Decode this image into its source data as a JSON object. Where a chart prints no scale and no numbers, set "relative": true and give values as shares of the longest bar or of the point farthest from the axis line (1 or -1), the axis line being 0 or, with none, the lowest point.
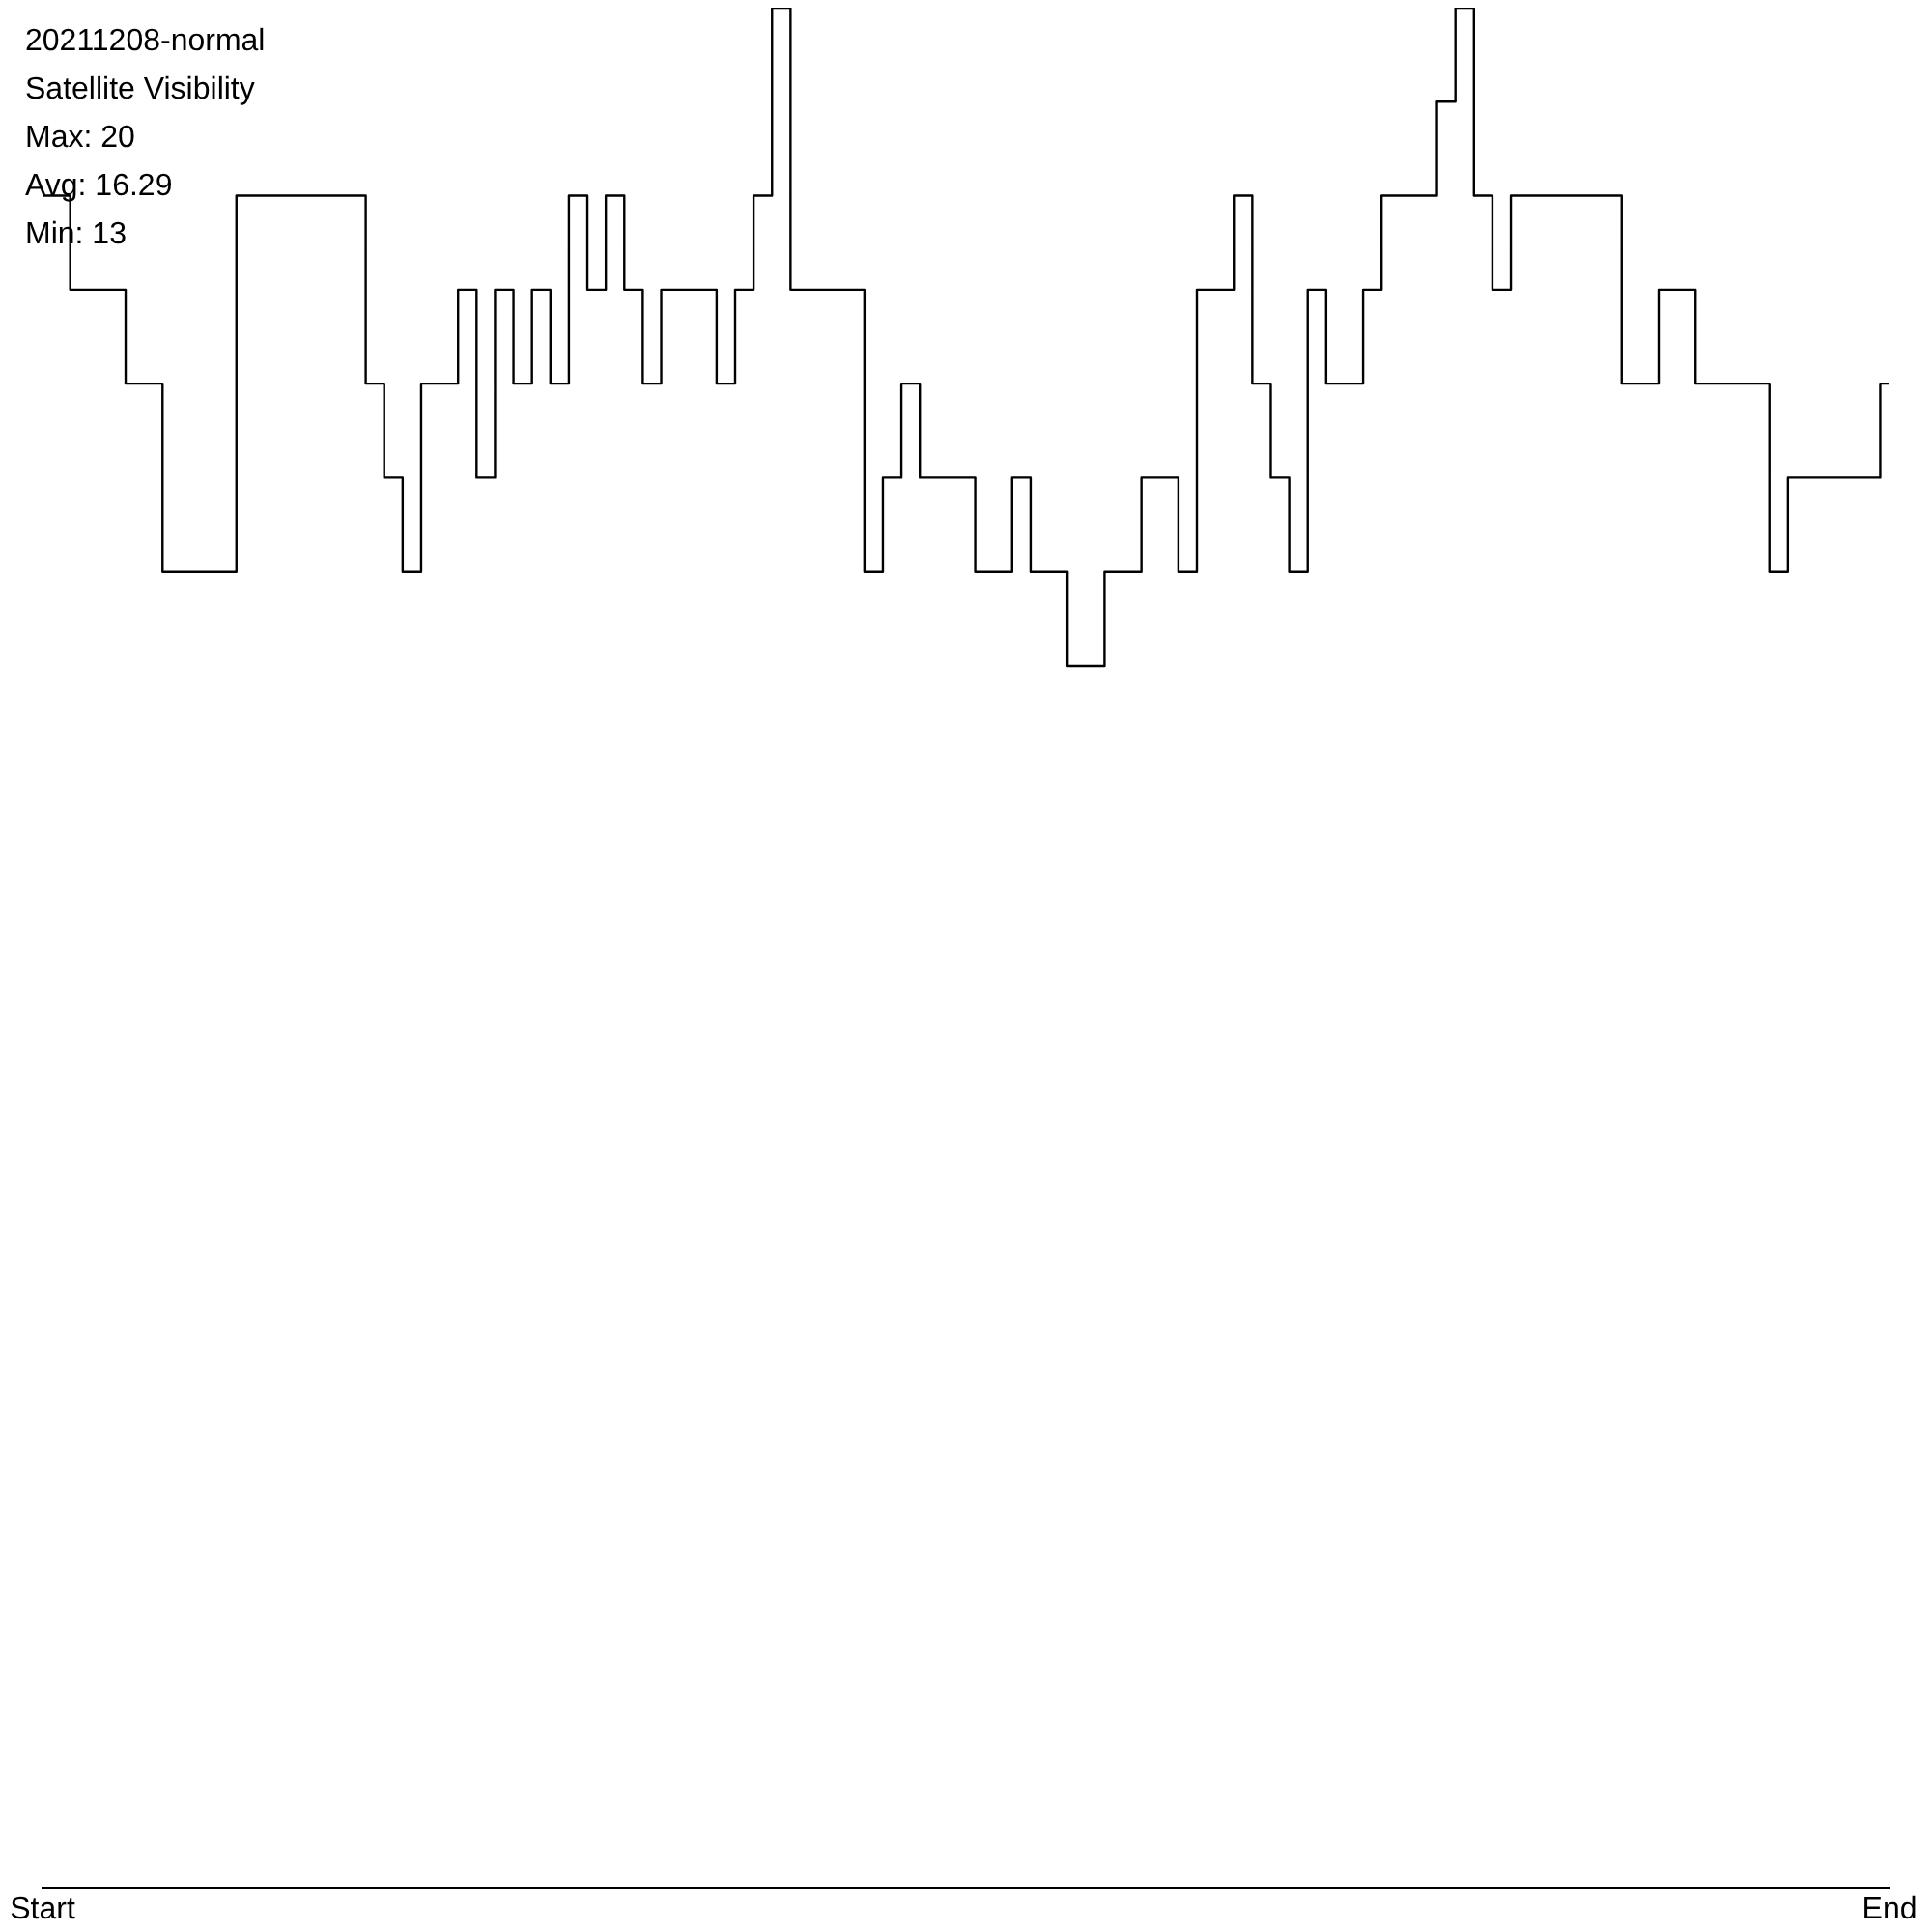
{
  "chart_data": {
    "type": "step",
    "title": "20211208-normal",
    "subtitle": "Satellite Visibility",
    "annotations": [
      "Max: 20",
      "Avg: 16.29",
      "Min: 13"
    ],
    "relative": true,
    "grid": false,
    "color": "#000000",
    "categories": [
      "Start",
      null,
      null,
      null,
      null,
      null,
      null,
      null,
      null,
      null,
      null,
      null,
      null,
      null,
      null,
      null,
      null,
      null,
      null,
      null,
      null,
      null,
      null,
      null,
      null,
      null,
      null,
      null,
      null,
      null,
      null,
      null,
      null,
      null,
      null,
      null,
      null,
      null,
      null,
      null,
      null,
      null,
      null,
      null,
      null,
      null,
      null,
      null,
      null,
      null,
      null,
      null,
      null,
      null,
      null,
      null,
      null,
      null,
      null,
      null,
      null,
      null,
      null,
      null,
      null,
      null,
      null,
      null,
      null,
      null,
      null,
      null,
      null,
      null,
      null,
      null,
      null,
      null,
      null,
      null,
      null,
      null,
      null,
      null,
      null,
      null,
      null,
      null,
      null,
      null,
      null,
      null,
      null,
      null,
      null,
      null,
      null,
      null,
      null,
      null,
      "End"
    ],
    "values": [
      0.9,
      0.9,
      0.85,
      0.85,
      0.85,
      0.8,
      0.8,
      0.7,
      0.7,
      0.7,
      0.7,
      0.9,
      0.9,
      0.9,
      0.9,
      0.9,
      0.9,
      0.9,
      0.8,
      0.75,
      0.7,
      0.8,
      0.8,
      0.85,
      0.75,
      0.85,
      0.8,
      0.85,
      0.8,
      0.9,
      0.85,
      0.9,
      0.85,
      0.8,
      0.85,
      0.85,
      0.85,
      0.8,
      0.85,
      0.9,
      1,
      0.85,
      0.85,
      0.85,
      0.85,
      0.7,
      0.75,
      0.8,
      0.75,
      0.75,
      0.75,
      0.7,
      0.7,
      0.75,
      0.7,
      0.7,
      0.65,
      0.65,
      0.7,
      0.7,
      0.75,
      0.75,
      0.7,
      0.85,
      0.85,
      0.9,
      0.8,
      0.75,
      0.7,
      0.85,
      0.8,
      0.8,
      0.85,
      0.9,
      0.9,
      0.9,
      0.95,
      1,
      0.9,
      0.85,
      0.9,
      0.9,
      0.9,
      0.9,
      0.9,
      0.9,
      0.8,
      0.8,
      0.85,
      0.85,
      0.8,
      0.8,
      0.8,
      0.8,
      0.7,
      0.75,
      0.75,
      0.75,
      0.75,
      0.75,
      0.8
    ]
  }
}
